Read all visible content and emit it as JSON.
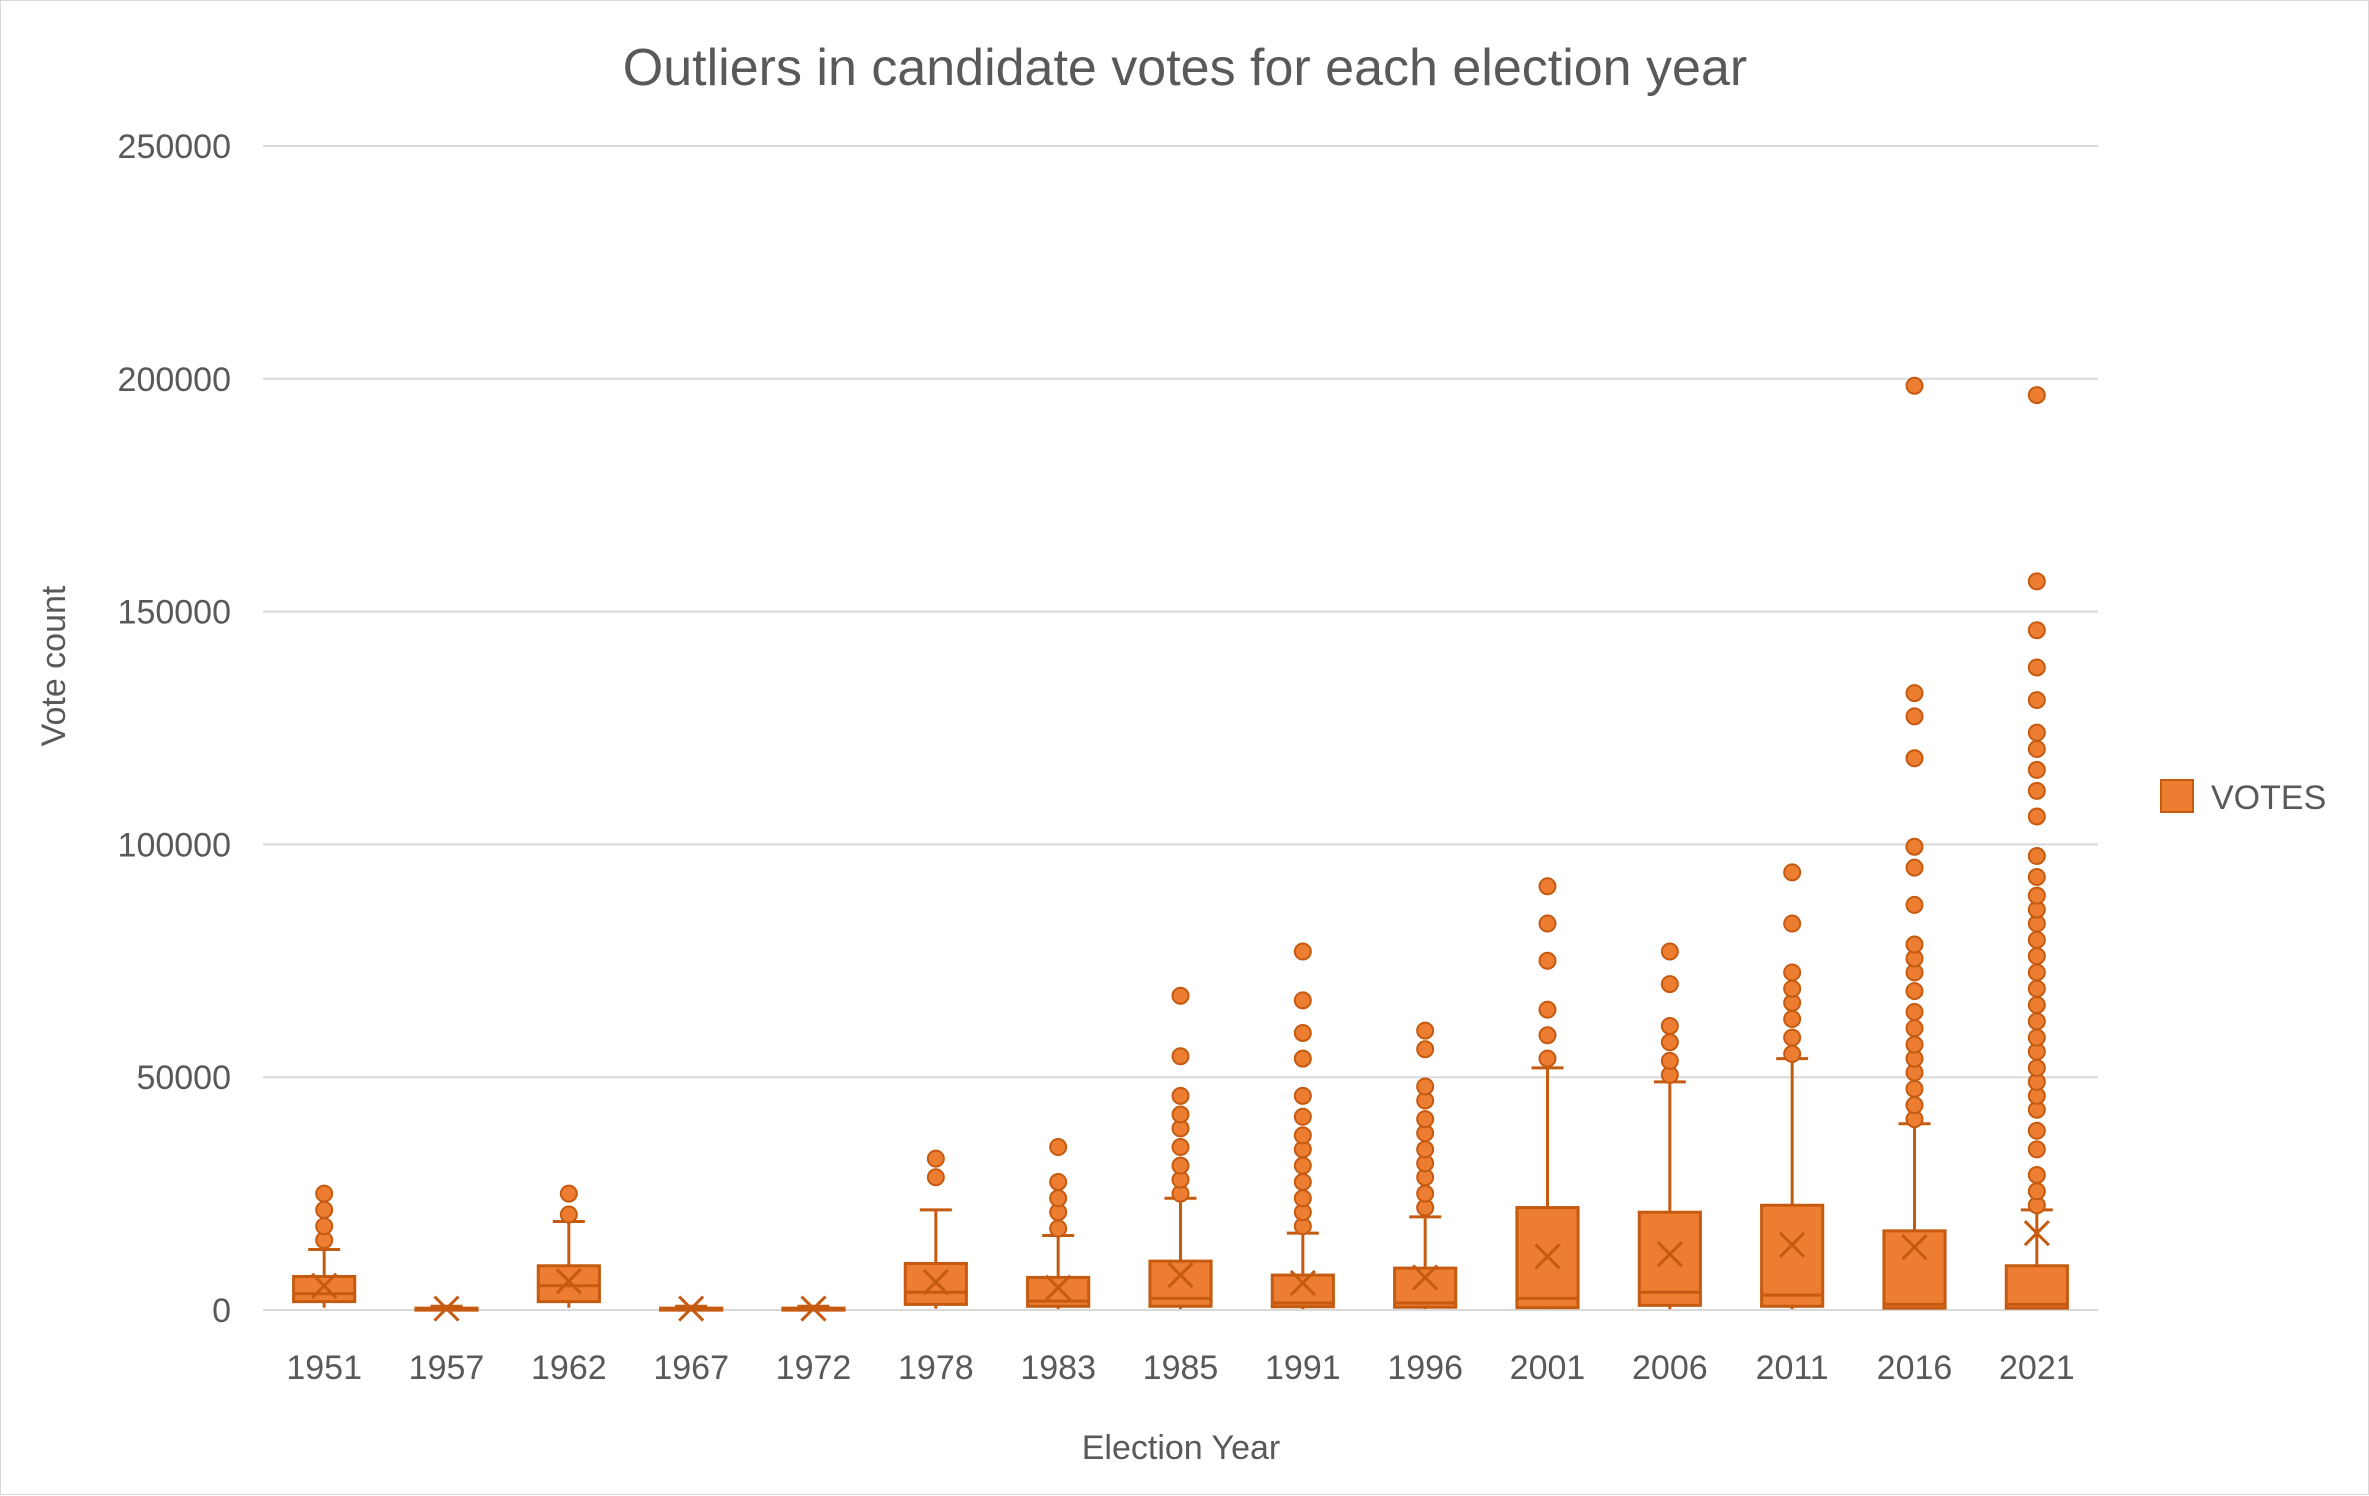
{
  "chart_data": {
    "type": "box",
    "title": "Outliers in candidate votes for each election year",
    "xlabel": "Election Year",
    "ylabel": "Vote count",
    "ylim": [
      0,
      250000
    ],
    "yticks": [
      0,
      50000,
      100000,
      150000,
      200000,
      250000
    ],
    "grid": true,
    "legend": "right",
    "color": "#ED7D31",
    "edge_color": "#C55A11",
    "series": [
      {
        "name": "VOTES",
        "boxes": [
          {
            "category": "1951",
            "whisker_low": 500,
            "q1": 1800,
            "median": 3500,
            "q3": 7200,
            "whisker_high": 13000,
            "mean": 5200,
            "outliers": [
              15000,
              18000,
              21500,
              25000
            ]
          },
          {
            "category": "1957",
            "whisker_low": 0,
            "q1": 100,
            "median": 200,
            "q3": 400,
            "whisker_high": 800,
            "mean": 300,
            "outliers": []
          },
          {
            "category": "1962",
            "whisker_low": 500,
            "q1": 1800,
            "median": 5200,
            "q3": 9500,
            "whisker_high": 19000,
            "mean": 6200,
            "outliers": [
              20500,
              25000
            ]
          },
          {
            "category": "1967",
            "whisker_low": 0,
            "q1": 100,
            "median": 200,
            "q3": 400,
            "whisker_high": 800,
            "mean": 300,
            "outliers": []
          },
          {
            "category": "1972",
            "whisker_low": 0,
            "q1": 100,
            "median": 200,
            "q3": 400,
            "whisker_high": 800,
            "mean": 300,
            "outliers": []
          },
          {
            "category": "1978",
            "whisker_low": 300,
            "q1": 1200,
            "median": 3800,
            "q3": 10000,
            "whisker_high": 21500,
            "mean": 6000,
            "outliers": [
              28500,
              32500
            ]
          },
          {
            "category": "1983",
            "whisker_low": 200,
            "q1": 800,
            "median": 1900,
            "q3": 7000,
            "whisker_high": 16000,
            "mean": 4800,
            "outliers": [
              17500,
              21000,
              24000,
              27500,
              35000
            ]
          },
          {
            "category": "1985",
            "whisker_low": 200,
            "q1": 800,
            "median": 2500,
            "q3": 10500,
            "whisker_high": 24000,
            "mean": 7500,
            "outliers": [
              25000,
              28000,
              31000,
              35000,
              39000,
              42000,
              46000,
              54500,
              67500
            ]
          },
          {
            "category": "1991",
            "whisker_low": 200,
            "q1": 700,
            "median": 1500,
            "q3": 7500,
            "whisker_high": 16500,
            "mean": 5800,
            "outliers": [
              18000,
              21000,
              24000,
              27500,
              31000,
              34500,
              37500,
              41500,
              46000,
              54000,
              59500,
              66500,
              77000
            ]
          },
          {
            "category": "1996",
            "whisker_low": 200,
            "q1": 600,
            "median": 1500,
            "q3": 9000,
            "whisker_high": 20000,
            "mean": 7000,
            "outliers": [
              22000,
              25000,
              28500,
              31500,
              34500,
              38000,
              41000,
              45000,
              48000,
              56000,
              60000
            ]
          },
          {
            "category": "2001",
            "whisker_low": 200,
            "q1": 500,
            "median": 2500,
            "q3": 22000,
            "whisker_high": 52000,
            "mean": 11500,
            "outliers": [
              54000,
              59000,
              64500,
              75000,
              83000,
              91000
            ]
          },
          {
            "category": "2006",
            "whisker_low": 200,
            "q1": 1000,
            "median": 3800,
            "q3": 21000,
            "whisker_high": 49000,
            "mean": 12000,
            "outliers": [
              50500,
              53500,
              57500,
              61000,
              70000,
              77000
            ]
          },
          {
            "category": "2011",
            "whisker_low": 200,
            "q1": 800,
            "median": 3200,
            "q3": 22500,
            "whisker_high": 54000,
            "mean": 14000,
            "outliers": [
              55000,
              58500,
              62500,
              66000,
              69000,
              72500,
              83000,
              94000
            ]
          },
          {
            "category": "2016",
            "whisker_low": 100,
            "q1": 400,
            "median": 1200,
            "q3": 17000,
            "whisker_high": 40000,
            "mean": 13500,
            "outliers": [
              41000,
              44000,
              47500,
              51000,
              54000,
              57000,
              60500,
              64000,
              68500,
              72500,
              75500,
              78500,
              87000,
              95000,
              99500,
              118500,
              127500,
              132500,
              198500
            ]
          },
          {
            "category": "2021",
            "whisker_low": 100,
            "q1": 400,
            "median": 1200,
            "q3": 9500,
            "whisker_high": 21500,
            "mean": 16500,
            "outliers": [
              22500,
              25500,
              29000,
              34500,
              38500,
              43000,
              46000,
              49000,
              52000,
              55500,
              58500,
              62000,
              65500,
              69000,
              72500,
              76000,
              79500,
              83000,
              86000,
              89000,
              93000,
              97500,
              106000,
              111500,
              116000,
              120500,
              124000,
              131000,
              138000,
              146000,
              156500,
              196500
            ]
          }
        ]
      }
    ]
  }
}
